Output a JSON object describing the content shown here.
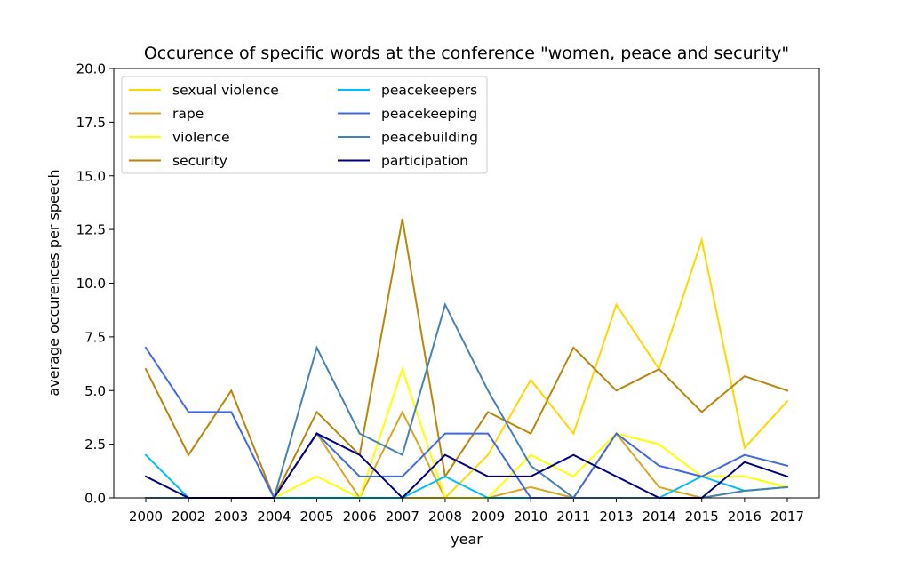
{
  "chart_data": {
    "type": "line",
    "title": "Occurence of specific words at the conference \"women, peace and security\"",
    "xlabel": "year",
    "ylabel": "average occurences per speech",
    "categories": [
      "2000",
      "2002",
      "2003",
      "2004",
      "2005",
      "2006",
      "2007",
      "2008",
      "2009",
      "2010",
      "2011",
      "2013",
      "2014",
      "2015",
      "2016",
      "2017"
    ],
    "ylim": [
      0,
      20
    ],
    "yticks": [
      "0.0",
      "2.5",
      "5.0",
      "7.5",
      "10.0",
      "12.5",
      "15.0",
      "17.5",
      "20.0"
    ],
    "legend_position": "top-left",
    "grid": false,
    "series": [
      {
        "name": "sexual violence",
        "color": "#FFD700",
        "values": [
          0,
          0,
          0,
          0,
          0,
          0,
          0,
          0,
          2,
          5.5,
          3,
          9,
          6,
          12,
          2.33,
          4.5
        ]
      },
      {
        "name": "rape",
        "color": "#DAA520",
        "values": [
          0,
          0,
          0,
          0,
          3,
          0,
          4,
          0,
          0,
          0.5,
          0,
          3,
          0.5,
          0,
          0.33,
          0.5
        ]
      },
      {
        "name": "violence",
        "color": "#FFFF00",
        "values": [
          0,
          0,
          0,
          0,
          1,
          0,
          6,
          0,
          0,
          2,
          1,
          3,
          2.5,
          1,
          1,
          0.5
        ]
      },
      {
        "name": "security",
        "color": "#B8860B",
        "values": [
          6,
          2,
          5,
          0,
          4,
          2,
          13,
          1,
          4,
          3,
          7,
          5,
          6,
          4,
          5.67,
          5
        ]
      },
      {
        "name": "peacekeepers",
        "color": "#00BFFF",
        "values": [
          2,
          0,
          0,
          0,
          0,
          0,
          0,
          1,
          0,
          0,
          0,
          0,
          0,
          1,
          0.33,
          0.5
        ]
      },
      {
        "name": "peacekeeping",
        "color": "#4169E1",
        "values": [
          7,
          4,
          4,
          0,
          3,
          1,
          1,
          3,
          3,
          0,
          0,
          3,
          1.5,
          1,
          2,
          1.5
        ]
      },
      {
        "name": "peacebuilding",
        "color": "#4682B4",
        "values": [
          0,
          0,
          0,
          0,
          7,
          3,
          2,
          9,
          5,
          1.5,
          0,
          0,
          0,
          0,
          0.33,
          0.5
        ]
      },
      {
        "name": "participation",
        "color": "#000080",
        "values": [
          1,
          0,
          0,
          0,
          3,
          2,
          0,
          2,
          1,
          1,
          2,
          1,
          0,
          0,
          1.67,
          1
        ]
      }
    ]
  }
}
